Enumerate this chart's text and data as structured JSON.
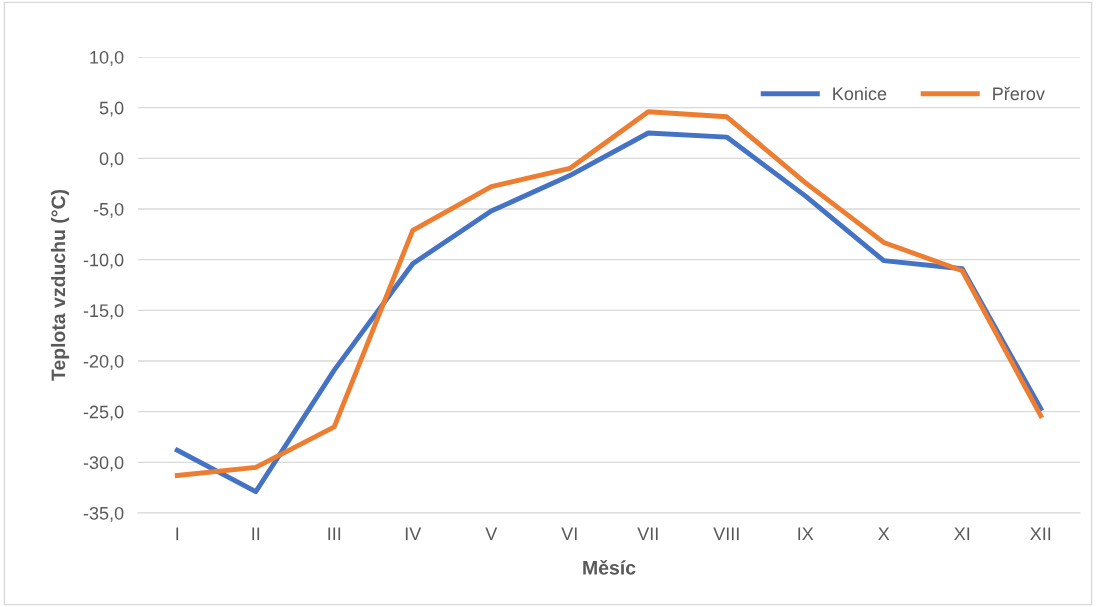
{
  "chart_data": {
    "type": "line",
    "xlabel": "Měsíc",
    "ylabel": "Teplota vzduchu (°C)",
    "categories": [
      "I",
      "II",
      "III",
      "IV",
      "V",
      "VI",
      "VII",
      "VIII",
      "IX",
      "X",
      "XI",
      "XII"
    ],
    "series": [
      {
        "name": "Konice",
        "color": "#4472c4",
        "values": [
          -28.8,
          -32.9,
          -20.9,
          -10.4,
          -5.2,
          -1.7,
          2.5,
          2.1,
          -3.7,
          -10.1,
          -10.9,
          -24.7
        ]
      },
      {
        "name": "Přerov",
        "color": "#ed7d31",
        "values": [
          -31.3,
          -30.5,
          -26.5,
          -7.1,
          -2.8,
          -1.0,
          4.6,
          4.1,
          -2.4,
          -8.3,
          -11.1,
          -25.4
        ]
      }
    ],
    "ylim": [
      -35,
      10
    ],
    "yticks": [
      {
        "value": -35,
        "label": "-35,0"
      },
      {
        "value": -30,
        "label": "-30,0"
      },
      {
        "value": -25,
        "label": "-25,0"
      },
      {
        "value": -20,
        "label": "-20,0"
      },
      {
        "value": -15,
        "label": "-15,0"
      },
      {
        "value": -10,
        "label": "-10,0"
      },
      {
        "value": -5,
        "label": "-5,0"
      },
      {
        "value": 0,
        "label": "0,0"
      },
      {
        "value": 5,
        "label": "5,0"
      },
      {
        "value": 10,
        "label": "10,0"
      }
    ],
    "grid": "y",
    "legend": "top right",
    "marker": "none",
    "line_style": "solid"
  }
}
